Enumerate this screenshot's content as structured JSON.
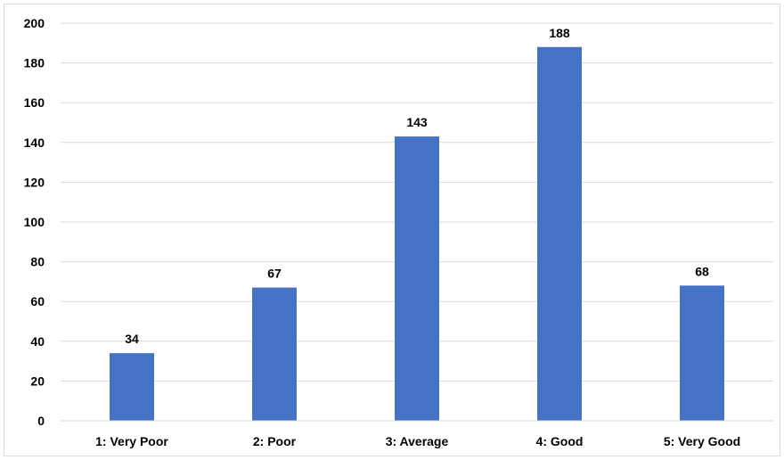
{
  "chart_data": {
    "type": "bar",
    "categories": [
      "1: Very Poor",
      "2: Poor",
      "3: Average",
      "4: Good",
      "5: Very Good"
    ],
    "values": [
      34,
      67,
      143,
      188,
      68
    ],
    "data_labels": [
      "34",
      "67",
      "143",
      "188",
      "68"
    ],
    "ylim": [
      0,
      200
    ],
    "y_ticks": [
      0,
      20,
      40,
      60,
      80,
      100,
      120,
      140,
      160,
      180,
      200
    ],
    "y_tick_labels": [
      "0",
      "20",
      "40",
      "60",
      "80",
      "100",
      "120",
      "140",
      "160",
      "180",
      "200"
    ],
    "grid": true,
    "legend": "none",
    "bar_color": "#4472C4",
    "grid_color": "#d9d9d9"
  }
}
